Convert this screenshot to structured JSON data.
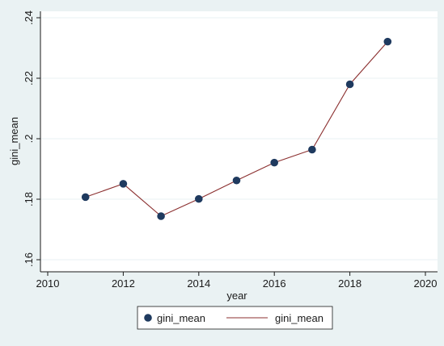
{
  "chart_data": {
    "type": "line",
    "xlabel": "year",
    "ylabel": "gini_mean",
    "xlim": [
      2010,
      2020
    ],
    "ylim": [
      0.16,
      0.24
    ],
    "x_ticks": [
      2010,
      2012,
      2014,
      2016,
      2018,
      2020
    ],
    "x_tick_labels": [
      "2010",
      "2012",
      "2014",
      "2016",
      "2018",
      "2020"
    ],
    "y_ticks": [
      0.16,
      0.18,
      0.2,
      0.22,
      0.24
    ],
    "y_tick_labels": [
      ".16",
      ".18",
      ".2",
      ".22",
      ".24"
    ],
    "grid": "horizontal",
    "legend_position": "bottom",
    "series": [
      {
        "name": "gini_mean",
        "style": "markers",
        "color": "#1f3a5f",
        "x": [
          2011,
          2012,
          2013,
          2014,
          2015,
          2016,
          2017,
          2018,
          2019
        ],
        "y": [
          0.1807,
          0.1851,
          0.1744,
          0.1801,
          0.1862,
          0.1921,
          0.1964,
          0.218,
          0.2321
        ]
      },
      {
        "name": "gini_mean",
        "style": "line",
        "color": "#8b2f2f",
        "x": [
          2011,
          2012,
          2013,
          2014,
          2015,
          2016,
          2017,
          2018,
          2019
        ],
        "y": [
          0.1807,
          0.1851,
          0.1744,
          0.1801,
          0.1862,
          0.1921,
          0.1964,
          0.218,
          0.2321
        ]
      }
    ]
  },
  "colors": {
    "background": "#eaf2f3",
    "plot_area": "#ffffff",
    "grid": "#eaf2f3",
    "axis": "#1a1a1a"
  }
}
